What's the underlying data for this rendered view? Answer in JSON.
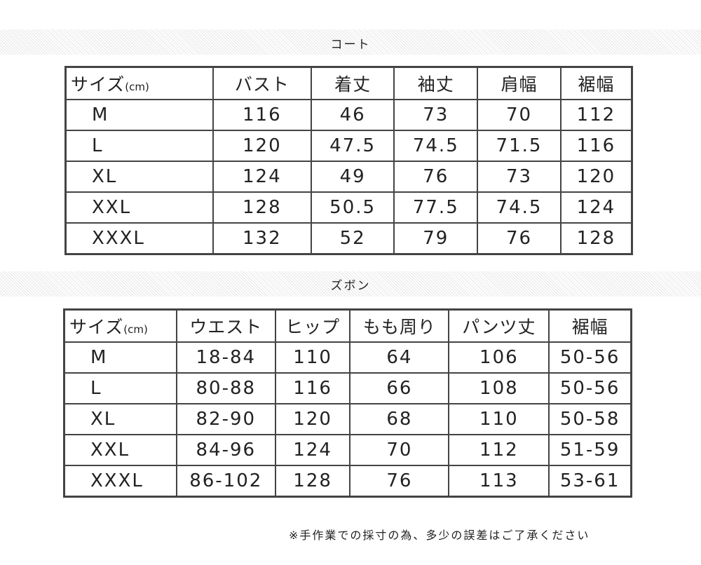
{
  "coat": {
    "title": "コート",
    "size_label": "サイズ",
    "unit": "(cm)",
    "headers": [
      "バスト",
      "着丈",
      "袖丈",
      "肩幅",
      "裾幅"
    ],
    "rows": [
      [
        "M",
        "116",
        "46",
        "73",
        "70",
        "112"
      ],
      [
        "L",
        "120",
        "47.5",
        "74.5",
        "71.5",
        "116"
      ],
      [
        "XL",
        "124",
        "49",
        "76",
        "73",
        "120"
      ],
      [
        "XXL",
        "128",
        "50.5",
        "77.5",
        "74.5",
        "124"
      ],
      [
        "XXXL",
        "132",
        "52",
        "79",
        "76",
        "128"
      ]
    ]
  },
  "pants": {
    "title": "ズボン",
    "size_label": "サイズ",
    "unit": "(cm)",
    "headers": [
      "ウエスト",
      "ヒップ",
      "もも周り",
      "パンツ丈",
      "裾幅"
    ],
    "rows": [
      [
        "M",
        "18-84",
        "110",
        "64",
        "106",
        "50-56"
      ],
      [
        "L",
        "80-88",
        "116",
        "66",
        "108",
        "50-56"
      ],
      [
        "XL",
        "82-90",
        "120",
        "68",
        "110",
        "50-58"
      ],
      [
        "XXL",
        "84-96",
        "124",
        "70",
        "112",
        "51-59"
      ],
      [
        "XXXL",
        "86-102",
        "128",
        "76",
        "113",
        "53-61"
      ]
    ]
  },
  "note": "※手作業での採寸の為、多少の誤差はご了承ください"
}
